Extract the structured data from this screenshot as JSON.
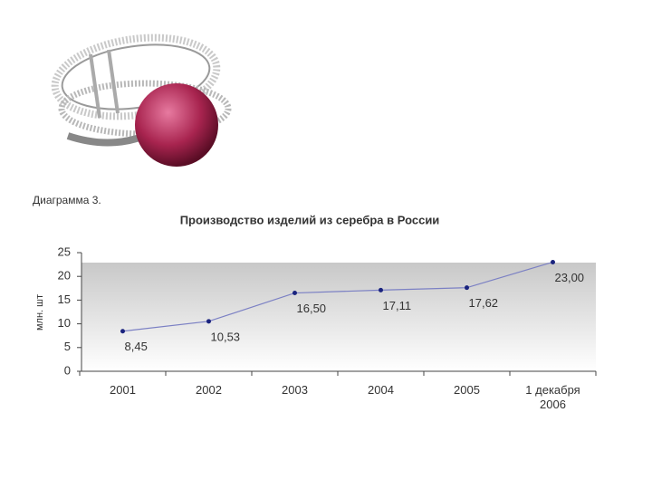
{
  "chart_data": {
    "type": "line",
    "caption": "Диаграмма 3.",
    "title": "Производство изделий из серебра в России",
    "y_label": "млн. шт",
    "categories": [
      "2001",
      "2002",
      "2003",
      "2004",
      "2005",
      "1 декабря 2006"
    ],
    "values": [
      8.45,
      10.53,
      16.5,
      17.11,
      17.62,
      23.0
    ],
    "value_labels": [
      "8,45",
      "10,53",
      "16,50",
      "17,11",
      "17,62",
      "23,00"
    ],
    "color": "#7b80c4",
    "marker_color": "#1a237e",
    "ylim": [
      0,
      25
    ],
    "yticks": [
      0,
      5,
      10,
      15,
      20,
      25
    ]
  }
}
